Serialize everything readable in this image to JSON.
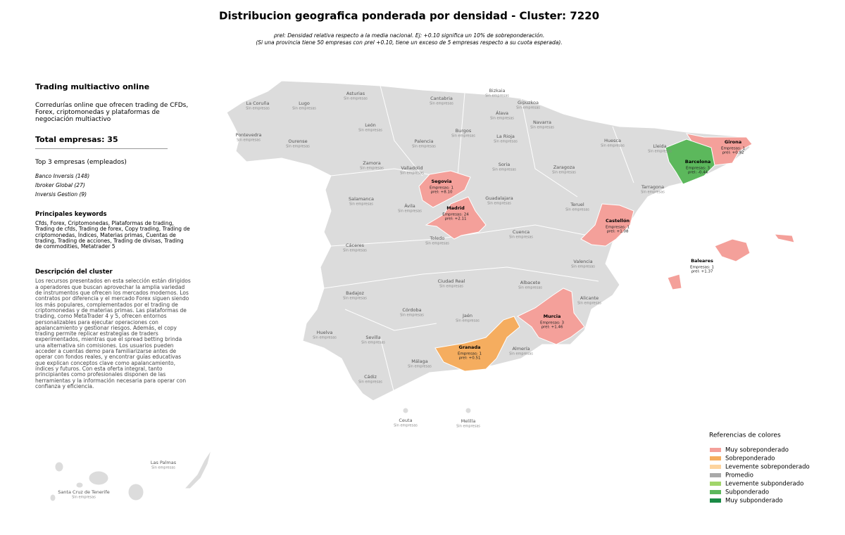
{
  "title": "Distribucion geografica ponderada por densidad - Cluster: 7220",
  "subtitle": [
    "ρrel: Densidad relativa respecto a la media nacional. Ej: +0.10 significa un 10% de sobreponderación.",
    "(Si una provincia tiene 50 empresas con ρrel +0.10, tiene un exceso de 5 empresas respecto a su cuota esperada)."
  ],
  "sidebar": {
    "heading": "Trading multiactivo online",
    "description": "Corredurías online que ofrecen trading de CFDs, Forex, criptomonedas y plataformas de negociación multiactivo",
    "total": "Total empresas: 35",
    "top_heading": "Top 3 empresas (empleados)",
    "top": [
      "Banco Inversis (148)",
      "Ibroker Global (27)",
      "Inversis Gestion (9)"
    ],
    "keywords_heading": "Principales keywords",
    "keywords": "Cfds, Forex, Criptomonedas, Plataformas de trading, Trading de cfds, Trading de forex, Copy trading, Trading de criptomonedas, Índices, Materias primas, Cuentas de trading, Trading de acciones, Trading de divisas, Trading de commodities, Metatrader 5",
    "cluster_heading": "Descripción del cluster",
    "cluster_text": "Los recursos presentados en esta selección están dirigidos a operadores que buscan aprovechar la amplia variedad de instrumentos que ofrecen los mercados modernos. Los contratos por diferencia y el mercado Forex siguen siendo los más populares, complementados por el trading de criptomonedas y de materias primas. Las plataformas de trading, como MetaTrader 4 y 5, ofrecen entornos personalizables para ejecutar operaciones con apalancamiento y gestionar riesgos. Además, el copy trading permite replicar estrategias de traders experimentados, mientras que el spread betting brinda una alternativa sin comisiones. Los usuarios pueden acceder a cuentas demo para familiarizarse antes de operar con fondos reales, y encontrar guías educativas que explican conceptos clave como apalancamiento, índices y futuros. Con esta oferta integral, tanto principiantes como profesionales disponen de las herramientas y la información necesaria para operar con confianza y eficiencia."
  },
  "provinces": [
    {
      "name": "La Coruña",
      "sublabel": "Sin empresas"
    },
    {
      "name": "Lugo",
      "sublabel": "Sin empresas"
    },
    {
      "name": "Asturias",
      "sublabel": "Sin empresas"
    },
    {
      "name": "Cantabria",
      "sublabel": "Sin empresas"
    },
    {
      "name": "Bizkaia",
      "sublabel": "Sin empresas"
    },
    {
      "name": "Gipuzkoa",
      "sublabel": "Sin empresas"
    },
    {
      "name": "Álava",
      "sublabel": "Sin empresas"
    },
    {
      "name": "Navarra",
      "sublabel": "Sin empresas"
    },
    {
      "name": "Pontevedra",
      "sublabel": "Sin empresas"
    },
    {
      "name": "Ourense",
      "sublabel": "Sin empresas"
    },
    {
      "name": "León",
      "sublabel": "Sin empresas"
    },
    {
      "name": "Palencia",
      "sublabel": "Sin empresas"
    },
    {
      "name": "Burgos",
      "sublabel": "Sin empresas"
    },
    {
      "name": "La Rioja",
      "sublabel": "Sin empresas"
    },
    {
      "name": "Huesca",
      "sublabel": "Sin empresas"
    },
    {
      "name": "Lleida",
      "sublabel": "Sin empresas"
    },
    {
      "name": "Girona",
      "empresas": "Empresas: 1",
      "rho": "ρrel: +0.92",
      "color": "#f4a09a"
    },
    {
      "name": "Zamora",
      "sublabel": "Sin empresas"
    },
    {
      "name": "Valladolid",
      "sublabel": "Sin empresas"
    },
    {
      "name": "Soria",
      "sublabel": "Sin empresas"
    },
    {
      "name": "Zaragoza",
      "sublabel": "Sin empresas"
    },
    {
      "name": "Barcelona",
      "empresas": "Empresas: 3",
      "rho": "ρrel: -0.44",
      "color": "#5cb85c"
    },
    {
      "name": "Segovia",
      "empresas": "Empresas: 1",
      "rho": "ρrel: +8.10",
      "color": "#f4a09a"
    },
    {
      "name": "Tarragona",
      "sublabel": "Sin empresas"
    },
    {
      "name": "Salamanca",
      "sublabel": "Sin empresas"
    },
    {
      "name": "Ávila",
      "sublabel": "Sin empresas"
    },
    {
      "name": "Guadalajara",
      "sublabel": "Sin empresas"
    },
    {
      "name": "Madrid",
      "empresas": "Empresas: 24",
      "rho": "ρrel: +2.11",
      "color": "#f4a09a"
    },
    {
      "name": "Teruel",
      "sublabel": "Sin empresas"
    },
    {
      "name": "Castellón",
      "empresas": "Empresas: 1",
      "rho": "ρrel: +1.08",
      "color": "#f4a09a"
    },
    {
      "name": "Cáceres",
      "sublabel": "Sin empresas"
    },
    {
      "name": "Toledo",
      "sublabel": "Sin empresas"
    },
    {
      "name": "Cuenca",
      "sublabel": "Sin empresas"
    },
    {
      "name": "Valencia",
      "sublabel": "Sin empresas"
    },
    {
      "name": "Baleares",
      "empresas": "Empresas: 1",
      "rho": "ρrel: +1.37",
      "color": "#f4a09a"
    },
    {
      "name": "Badajoz",
      "sublabel": "Sin empresas"
    },
    {
      "name": "Ciudad Real",
      "sublabel": "Sin empresas"
    },
    {
      "name": "Albacete",
      "sublabel": "Sin empresas"
    },
    {
      "name": "Alicante",
      "sublabel": "Sin empresas"
    },
    {
      "name": "Córdoba",
      "sublabel": "Sin empresas"
    },
    {
      "name": "Jaén",
      "sublabel": "Sin empresas"
    },
    {
      "name": "Murcia",
      "empresas": "Empresas: 3",
      "rho": "ρrel: +1.46",
      "color": "#f4a09a"
    },
    {
      "name": "Huelva",
      "sublabel": "Sin empresas"
    },
    {
      "name": "Sevilla",
      "sublabel": "Sin empresas"
    },
    {
      "name": "Granada",
      "empresas": "Empresas: 1",
      "rho": "ρrel: +0.51",
      "color": "#f5ad5f"
    },
    {
      "name": "Almería",
      "sublabel": "Sin empresas"
    },
    {
      "name": "Málaga",
      "sublabel": "Sin empresas"
    },
    {
      "name": "Cádiz",
      "sublabel": "Sin empresas"
    },
    {
      "name": "Ceuta",
      "sublabel": "Sin empresas"
    },
    {
      "name": "Melilla",
      "sublabel": "Sin empresas"
    },
    {
      "name": "Las Palmas",
      "sublabel": "Sin empresas"
    },
    {
      "name": "Santa Cruz de Tenerife",
      "sublabel": "Sin empresas"
    }
  ],
  "legend": {
    "title": "Referencias de colores",
    "items": [
      {
        "label": "Muy sobreponderado",
        "color": "#f4a09a"
      },
      {
        "label": "Sobreponderado",
        "color": "#f5ad5f"
      },
      {
        "label": "Levemente sobreponderado",
        "color": "#fdd49e"
      },
      {
        "label": "Promedio",
        "color": "#a9a9a9"
      },
      {
        "label": "Levemente subponderado",
        "color": "#a1d56a"
      },
      {
        "label": "Subponderado",
        "color": "#5cb85c"
      },
      {
        "label": "Muy subponderado",
        "color": "#1a8a45"
      }
    ]
  }
}
